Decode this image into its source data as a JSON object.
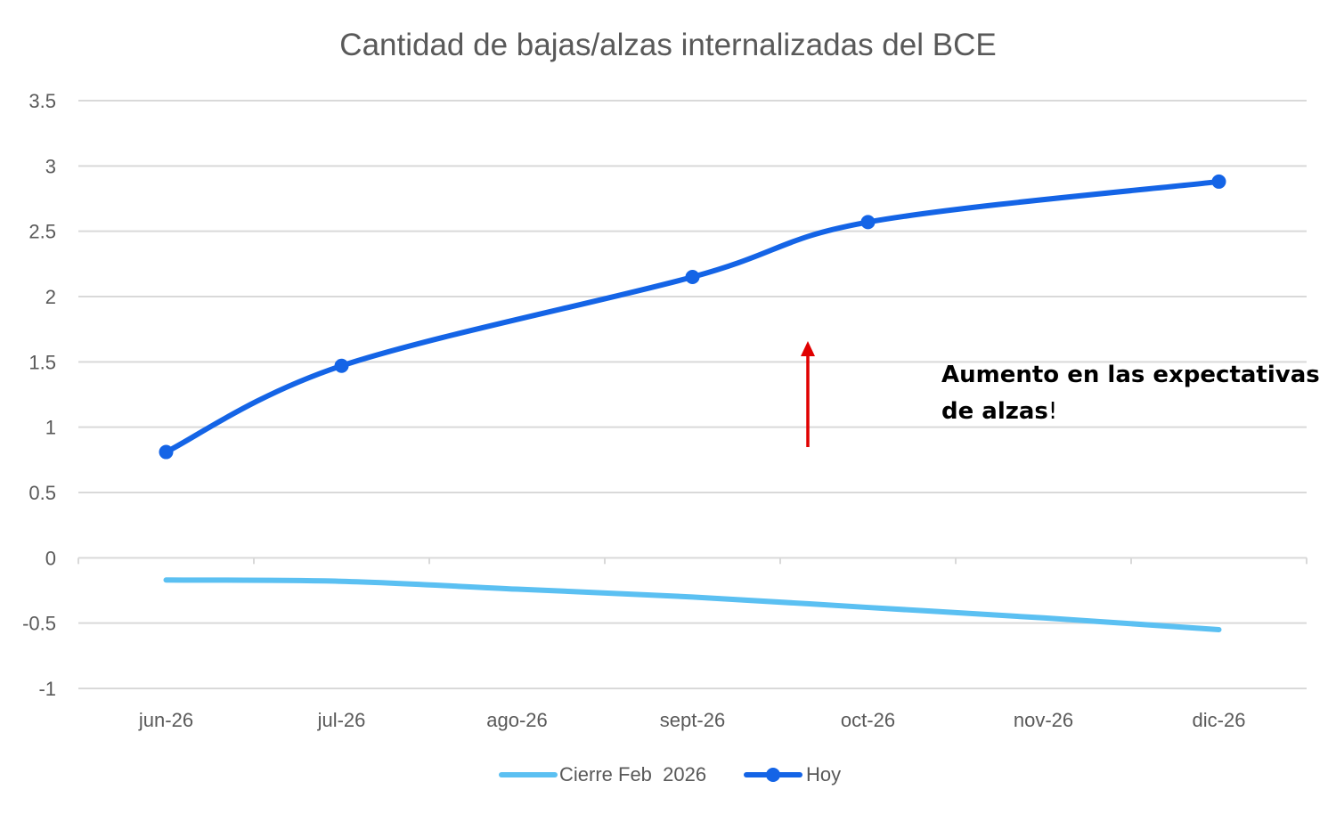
{
  "chart_data": {
    "type": "line",
    "title": "Cantidad de bajas/alzas internalizadas del BCE",
    "categories": [
      "jun-26",
      "jul-26",
      "ago-26",
      "sept-26",
      "oct-26",
      "nov-26",
      "dic-26"
    ],
    "ylim": [
      -1,
      3.5
    ],
    "yticks": [
      "3.5",
      "3",
      "2.5",
      "2",
      "1.5",
      "1",
      "0.5",
      "0",
      "-0.5",
      "-1"
    ],
    "grid": true,
    "legend_position": "bottom",
    "series": [
      {
        "name": "Cierre Feb  2026",
        "color": "#5bc0f2",
        "markers": false,
        "points": [
          {
            "x": "jun-26",
            "y": -0.17
          },
          {
            "x": "jul-26",
            "y": -0.18
          },
          {
            "x": "ago-26",
            "y": -0.24
          },
          {
            "x": "sept-26",
            "y": -0.3
          },
          {
            "x": "oct-26",
            "y": -0.38
          },
          {
            "x": "nov-26",
            "y": -0.46
          },
          {
            "x": "dic-26",
            "y": -0.55
          }
        ]
      },
      {
        "name": "Hoy",
        "color": "#1464e6",
        "markers": true,
        "points": [
          {
            "x": "jun-26",
            "y": 0.81
          },
          {
            "x": "jul-26",
            "y": 1.47
          },
          {
            "x": "sept-26",
            "y": 2.15
          },
          {
            "x": "oct-26",
            "y": 2.57
          },
          {
            "x": "dic-26",
            "y": 2.88
          }
        ]
      }
    ],
    "annotation": {
      "line1": "Aumento en las expectativas",
      "line2": "de alzas",
      "suffix": "!",
      "arrow_color": "#e00000"
    }
  }
}
